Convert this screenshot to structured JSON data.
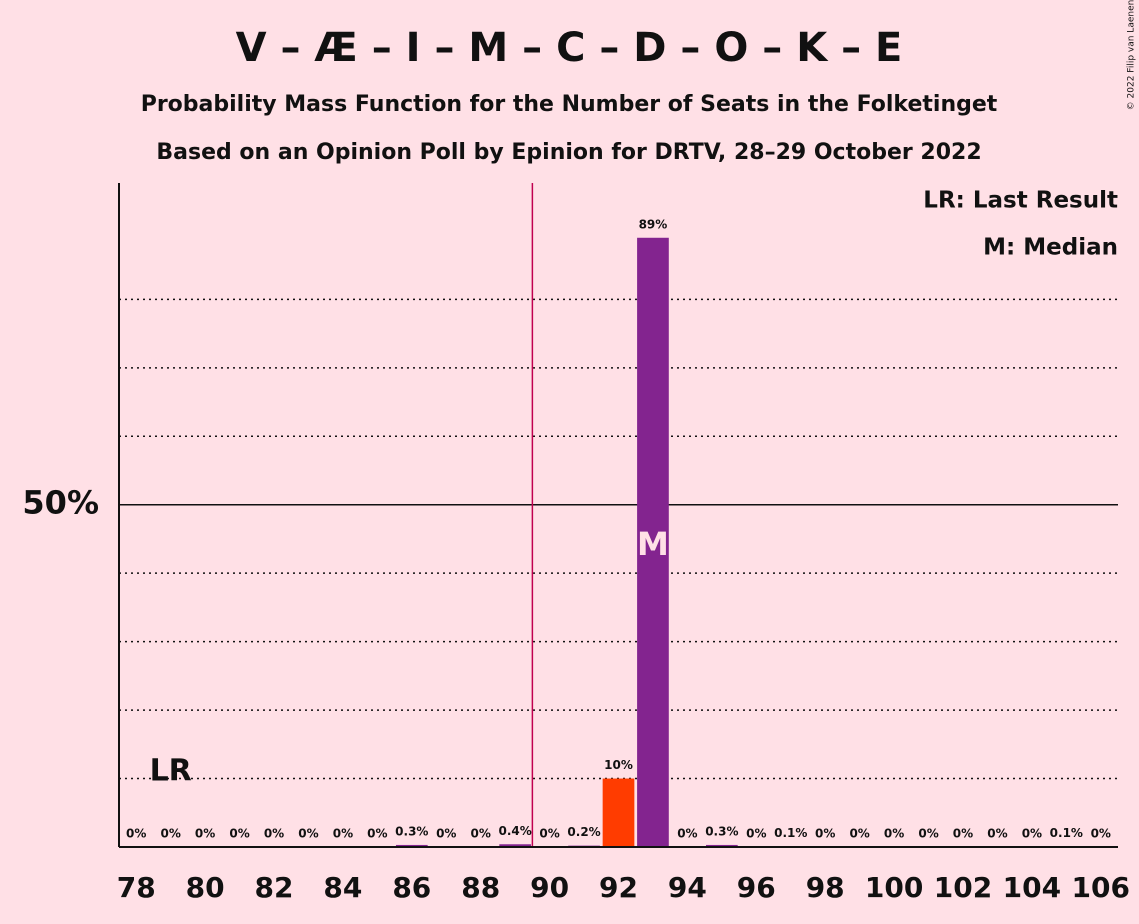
{
  "chart_data": {
    "type": "bar",
    "title": "V – Æ – I – M – C – D – O – K – E",
    "subtitle": "Probability Mass Function for the Number of Seats in the Folketinget",
    "subtitle2": "Based on an Opinion Poll by Epinion for DRTV, 28–29 October 2022",
    "copyright": "© 2022 Filip van Laenen",
    "legend": [
      "LR: Last Result",
      "M: Median"
    ],
    "legend_position": "top-right",
    "x": [
      78,
      79,
      80,
      81,
      82,
      83,
      84,
      85,
      86,
      87,
      88,
      89,
      90,
      91,
      92,
      93,
      94,
      95,
      96,
      97,
      98,
      99,
      100,
      101,
      102,
      103,
      104,
      105,
      106
    ],
    "values": [
      0,
      0,
      0,
      0,
      0,
      0,
      0,
      0,
      0.3,
      0,
      0,
      0.4,
      0,
      0.2,
      10,
      89,
      0,
      0.3,
      0,
      0.1,
      0,
      0,
      0,
      0,
      0,
      0,
      0,
      0.1,
      0
    ],
    "value_labels": [
      "0%",
      "0%",
      "0%",
      "0%",
      "0%",
      "0%",
      "0%",
      "0%",
      "0.3%",
      "0%",
      "0%",
      "0.4%",
      "0%",
      "0.2%",
      "10%",
      "89%",
      "0%",
      "0.3%",
      "0%",
      "0.1%",
      "0%",
      "0%",
      "0%",
      "0%",
      "0%",
      "0%",
      "0%",
      "0.1%",
      "0%"
    ],
    "colors": [
      "#83248f",
      "#83248f",
      "#83248f",
      "#83248f",
      "#83248f",
      "#83248f",
      "#83248f",
      "#83248f",
      "#83248f",
      "#83248f",
      "#83248f",
      "#83248f",
      "#83248f",
      "#83248f",
      "#ff3c00",
      "#83248f",
      "#83248f",
      "#83248f",
      "#83248f",
      "#83248f",
      "#83248f",
      "#83248f",
      "#83248f",
      "#83248f",
      "#83248f",
      "#83248f",
      "#83248f",
      "#83248f",
      "#83248f"
    ],
    "xlim": [
      77.5,
      106.5
    ],
    "xticks": [
      78,
      80,
      82,
      84,
      86,
      88,
      90,
      92,
      94,
      96,
      98,
      100,
      102,
      104,
      106
    ],
    "ylim": [
      0,
      97
    ],
    "yticks": [
      {
        "value": 50,
        "label": "50%"
      }
    ],
    "minor_yticks": [
      10,
      20,
      30,
      40,
      60,
      70,
      80
    ],
    "majority_line": 89.5,
    "majority_color": "#c0004f",
    "last_result": 79,
    "last_result_label": "LR",
    "median": 93,
    "median_label": "M"
  }
}
